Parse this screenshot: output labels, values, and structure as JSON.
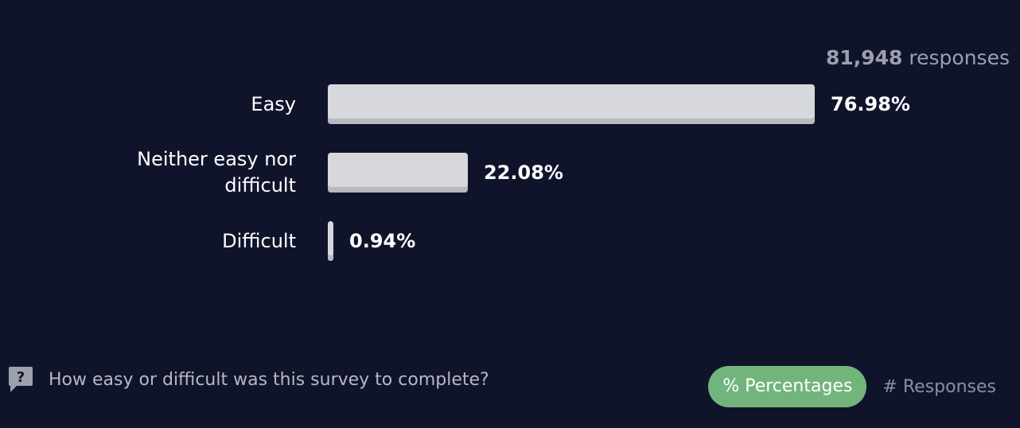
{
  "header": {
    "response_count": "81,948",
    "response_suffix": " responses"
  },
  "chart_data": {
    "type": "bar",
    "orientation": "horizontal",
    "categories": [
      "Easy",
      "Neither easy nor difficult",
      "Difficult"
    ],
    "values": [
      76.98,
      22.08,
      0.94
    ],
    "value_labels": [
      "76.98%",
      "22.08%",
      "0.94%"
    ],
    "unit": "%",
    "xlim": [
      0,
      100
    ],
    "grid": false,
    "bar_color": "#d7d8dc"
  },
  "footer": {
    "question": "How easy or difficult was this survey to complete?",
    "toggle_percentages": "% Percentages",
    "toggle_responses": "# Responses"
  },
  "colors": {
    "background": "#10142b",
    "active_toggle": "#72b57c",
    "muted_text": "#9ca0ac"
  }
}
